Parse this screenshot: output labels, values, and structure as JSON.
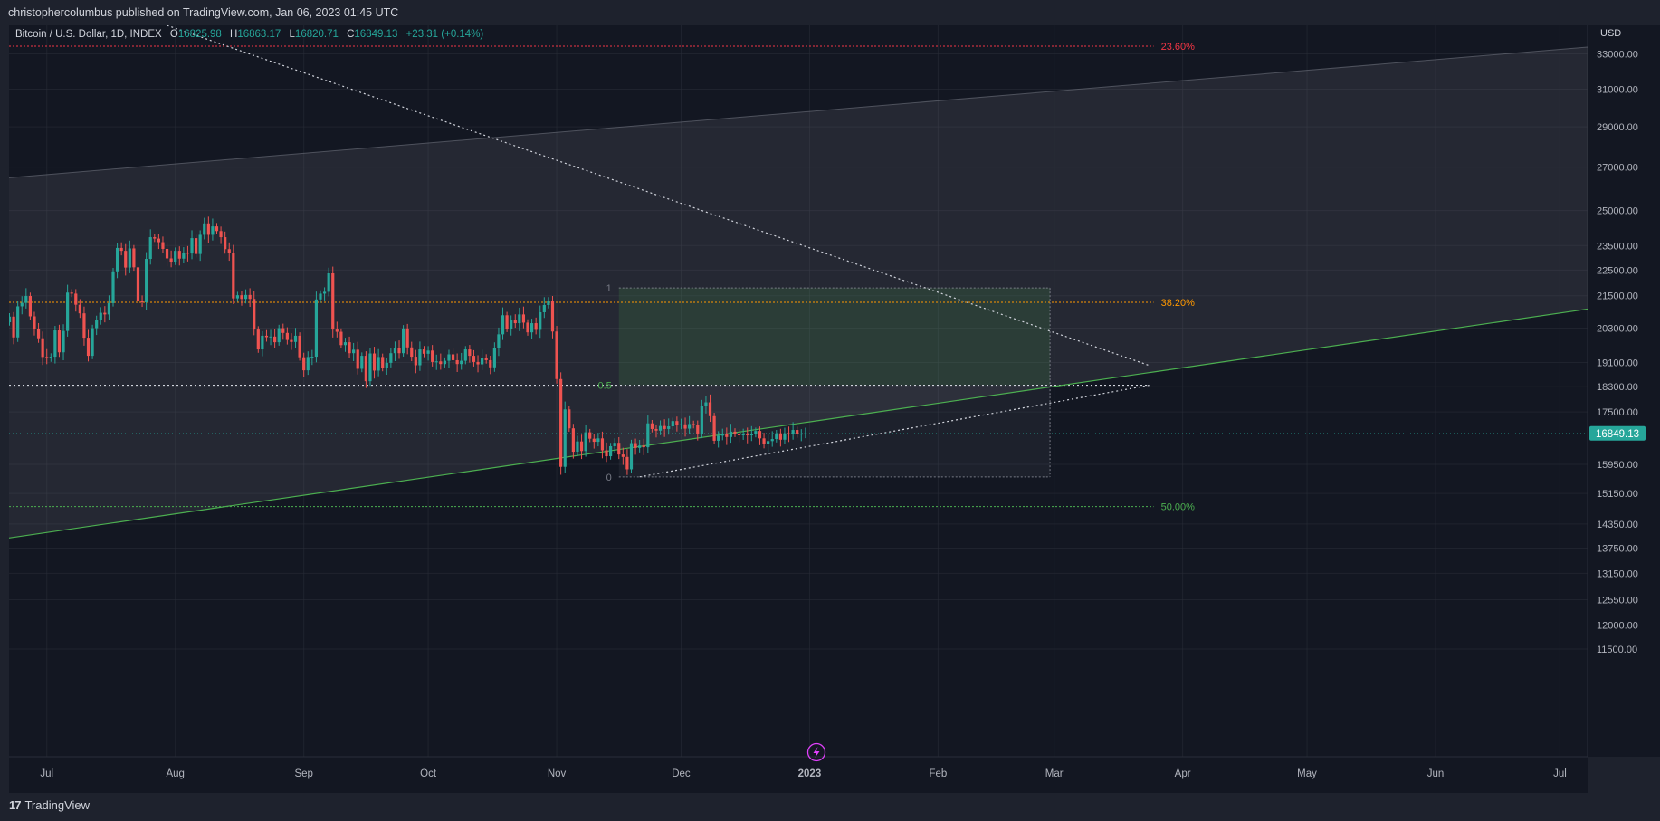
{
  "header": {
    "published_text": "christophercolumbus published on TradingView.com, Jan 06, 2023 01:45 UTC"
  },
  "footer": {
    "brand_text": "TradingView",
    "logo_text": "17"
  },
  "legend": {
    "symbol": "Bitcoin / U.S. Dollar, 1D, INDEX",
    "o_label": "O",
    "o_value": "16825.98",
    "h_label": "H",
    "h_value": "16863.17",
    "l_label": "L",
    "l_value": "16820.71",
    "c_label": "C",
    "c_value": "16849.13",
    "change": "+23.31 (+0.14%)"
  },
  "colors": {
    "background": "#131722",
    "up": "#26a69a",
    "down": "#ef5350",
    "fib_red": "#f23645",
    "fib_orange": "#ff9800",
    "fib_green": "#4caf50",
    "trend_green": "#4caf50"
  },
  "chart_data": {
    "type": "candlestick",
    "currency": "USD",
    "symbol": "Bitcoin / U.S. Dollar, 1D, INDEX",
    "last_price": "16849.13",
    "price_ticks": [
      "33000.00",
      "31000.00",
      "29000.00",
      "27000.00",
      "25000.00",
      "23500.00",
      "22500.00",
      "21500.00",
      "20300.00",
      "19100.00",
      "18300.00",
      "17500.00",
      "16849.13",
      "15950.00",
      "15150.00",
      "14350.00",
      "13750.00",
      "13150.00",
      "12550.00",
      "12000.00",
      "11500.00"
    ],
    "price_tick_values": [
      33000,
      31000,
      29000,
      27000,
      25000,
      23500,
      22500,
      21500,
      20300,
      19100,
      18300,
      17500,
      15950,
      15150,
      14350,
      13750,
      13150,
      12550,
      12000,
      11500
    ],
    "time_ticks": [
      "Jul",
      "Aug",
      "Sep",
      "Oct",
      "Nov",
      "Dec",
      "2023",
      "Feb",
      "Mar",
      "Apr",
      "May",
      "Jun",
      "Jul"
    ],
    "time_tick_dates": [
      "2022-07-01",
      "2022-08-01",
      "2022-09-01",
      "2022-10-01",
      "2022-11-01",
      "2022-12-01",
      "2023-01-01",
      "2023-02-01",
      "2023-03-01",
      "2023-04-01",
      "2023-05-01",
      "2023-06-01",
      "2023-07-01"
    ],
    "fib_levels": [
      {
        "label": "23.60%",
        "price": 33450,
        "color": "#f23645"
      },
      {
        "label": "38.20%",
        "price": 21250,
        "color": "#ff9800"
      },
      {
        "label": "50.00%",
        "price": 14800,
        "color": "#4caf50"
      }
    ],
    "position_box": {
      "start": "2022-11-16",
      "end": "2023-02-28",
      "top_price": 21800,
      "mid_price": 18350,
      "bottom_price": 15600,
      "labels": {
        "top": "1",
        "mid": "0.5",
        "bottom": "0"
      }
    },
    "closes_2022_06_22_to_2023_01_06": [
      20720,
      19970,
      21100,
      21230,
      21490,
      20730,
      20280,
      19940,
      19290,
      19240,
      19300,
      20220,
      19450,
      20200,
      21620,
      21580,
      21160,
      20840,
      19960,
      19330,
      20300,
      20590,
      20860,
      20800,
      21220,
      22450,
      23400,
      23280,
      22600,
      23380,
      22610,
      21300,
      21250,
      22950,
      23850,
      23790,
      23640,
      23360,
      22970,
      22840,
      23280,
      22960,
      23200,
      23170,
      23810,
      23150,
      23950,
      24440,
      23950,
      24310,
      24110,
      23850,
      23350,
      23200,
      21400,
      21520,
      21380,
      21530,
      21380,
      20250,
      19550,
      20030,
      19980,
      20000,
      19800,
      20300,
      20130,
      19880,
      19810,
      20030,
      19280,
      18840,
      19290,
      19300,
      21360,
      21580,
      21650,
      22370,
      20250,
      20170,
      19700,
      19800,
      19420,
      19540,
      18890,
      19330,
      18480,
      19410,
      18830,
      19290,
      18920,
      19090,
      19420,
      19590,
      19420,
      20290,
      19620,
      19300,
      19010,
      19550,
      19400,
      19510,
      19120,
      19140,
      19050,
      19160,
      19380,
      19180,
      19050,
      19160,
      19550,
      19330,
      19120,
      19040,
      19270,
      19180,
      18940,
      19600,
      20080,
      20770,
      20280,
      20600,
      20480,
      20800,
      20500,
      20150,
      20480,
      20240,
      20880,
      21150,
      21320,
      20180,
      18550,
      15880,
      17580,
      17000,
      16310,
      16610,
      16330,
      16880,
      16690,
      16600,
      16700,
      16350,
      16180,
      16470,
      16570,
      16230,
      16160,
      15810,
      16560,
      16420,
      16490,
      16440,
      17150,
      16980,
      16930,
      17070,
      16980,
      17060,
      17220,
      17110,
      17120,
      16990,
      17130,
      17100,
      16840,
      17700,
      17800,
      17370,
      16630,
      16780,
      16820,
      16740,
      16900,
      16840,
      16790,
      16820,
      16790,
      16830,
      16920,
      16700,
      16540,
      16620,
      16680,
      16850,
      16660,
      16850,
      16830,
      16950,
      16820,
      16840,
      16850
    ]
  }
}
